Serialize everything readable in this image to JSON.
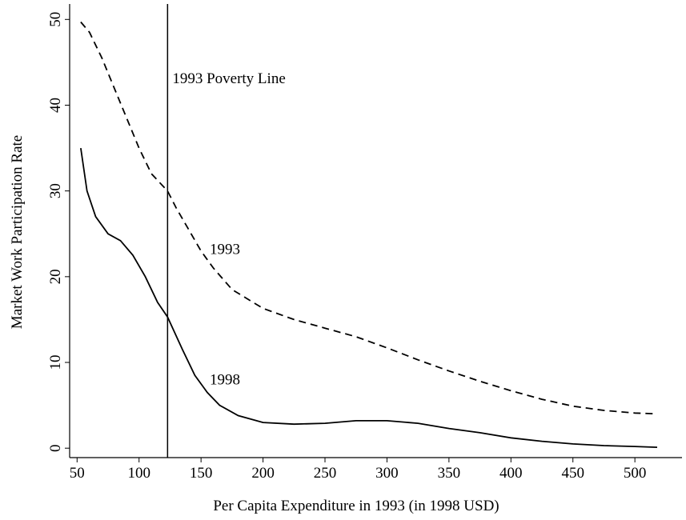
{
  "chart_data": {
    "type": "line",
    "x_label": "Per Capita Expenditure in 1993 (in 1998 USD)",
    "y_label": "Market Work Participation Rate",
    "xlim": [
      44,
      538
    ],
    "ylim": [
      -1.1,
      51.8
    ],
    "xticks": [
      50,
      100,
      150,
      200,
      250,
      300,
      350,
      400,
      450,
      500
    ],
    "yticks": [
      0,
      10,
      20,
      30,
      40,
      50
    ],
    "vline": {
      "x": 123,
      "label": "1993 Poverty Line",
      "label_y": 43.1
    },
    "series": [
      {
        "name": "1993",
        "color": "#000000",
        "dash": true,
        "label_x": 157,
        "label_y": 23.2,
        "x": [
          53,
          60,
          70,
          80,
          90,
          100,
          110,
          123,
          130,
          140,
          150,
          160,
          175,
          200,
          225,
          250,
          275,
          300,
          325,
          350,
          375,
          400,
          425,
          450,
          475,
          500,
          518
        ],
        "values": [
          49.7,
          48.5,
          45.5,
          42,
          38.5,
          35,
          32,
          30,
          28,
          25.5,
          23,
          21,
          18.5,
          16.3,
          15,
          14,
          13,
          11.7,
          10.3,
          9,
          7.8,
          6.7,
          5.7,
          4.9,
          4.4,
          4.1,
          4.0
        ]
      },
      {
        "name": "1998",
        "color": "#000000",
        "dash": false,
        "label_x": 157,
        "label_y": 8,
        "x": [
          53,
          58,
          65,
          75,
          85,
          95,
          105,
          115,
          123,
          135,
          145,
          155,
          165,
          180,
          200,
          225,
          250,
          275,
          300,
          325,
          350,
          375,
          400,
          425,
          450,
          475,
          500,
          518
        ],
        "values": [
          35,
          30,
          27,
          25,
          24.2,
          22.5,
          20,
          17,
          15.3,
          11.5,
          8.5,
          6.5,
          5,
          3.8,
          3.0,
          2.8,
          2.9,
          3.2,
          3.2,
          2.9,
          2.3,
          1.8,
          1.2,
          0.8,
          0.5,
          0.3,
          0.2,
          0.1
        ]
      }
    ]
  }
}
